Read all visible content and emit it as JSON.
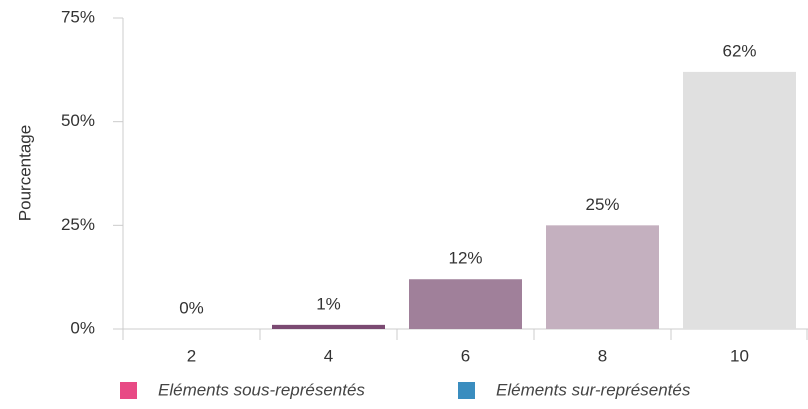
{
  "chart_data": {
    "type": "bar",
    "categories": [
      "2",
      "4",
      "6",
      "8",
      "10"
    ],
    "values": [
      0,
      1,
      12,
      25,
      62
    ],
    "value_labels": [
      "0%",
      "1%",
      "12%",
      "25%",
      "62%"
    ],
    "colors": [
      "#7b4a72",
      "#7b4a72",
      "#a0809a",
      "#c4b0bf",
      "#e0e0e0"
    ],
    "ylabel": "Pourcentage",
    "ylim": [
      0,
      75
    ],
    "yticks": [
      {
        "value": 0,
        "label": "0%"
      },
      {
        "value": 25,
        "label": "25%"
      },
      {
        "value": 50,
        "label": "50%"
      },
      {
        "value": 75,
        "label": "75%"
      }
    ],
    "legend": [
      {
        "name": "Eléments sous-représentés",
        "color": "#e84a85"
      },
      {
        "name": "Eléments sur-représentés",
        "color": "#3a8dbf"
      }
    ]
  }
}
